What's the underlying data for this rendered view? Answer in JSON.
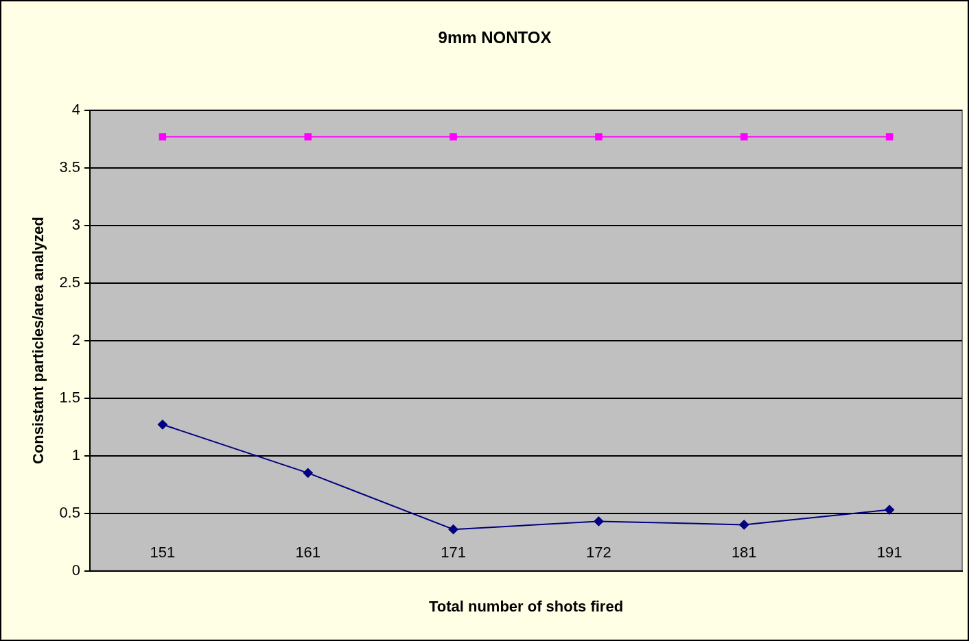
{
  "chart_data": {
    "type": "line",
    "title": "9mm NONTOX",
    "xlabel": "Total number of shots fired",
    "ylabel": "Consistant particles/area analyzed",
    "categories": [
      "151",
      "161",
      "171",
      "172",
      "181",
      "191"
    ],
    "series": [
      {
        "color": "#ff00ff",
        "marker": "square",
        "values": [
          3.77,
          3.77,
          3.77,
          3.77,
          3.77,
          3.77
        ]
      },
      {
        "color": "#000080",
        "marker": "diamond",
        "values": [
          1.27,
          0.85,
          0.36,
          0.43,
          0.4,
          0.53
        ]
      }
    ],
    "ylim": [
      0,
      4
    ],
    "yticks": [
      0,
      0.5,
      1,
      1.5,
      2,
      2.5,
      3,
      3.5,
      4
    ],
    "grid": "y"
  }
}
